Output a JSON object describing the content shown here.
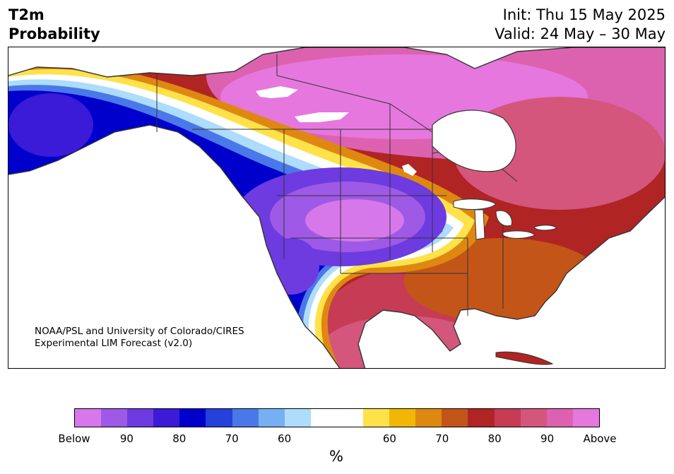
{
  "header": {
    "variable": "T2m",
    "product": "Probability",
    "init": "Init: Thu 15 May 2025",
    "valid": "Valid: 24 May – 30 May"
  },
  "credit": {
    "line1": "NOAA/PSL and University of Colorado/CIRES",
    "line2": "Experimental LIM Forecast (v2.0)"
  },
  "colorbar": {
    "unit": "%",
    "colors": [
      "#d677ea",
      "#9e59e6",
      "#6d3be0",
      "#3b1bd8",
      "#0000cd",
      "#2441dc",
      "#4a78e8",
      "#76b0f2",
      "#addcfc",
      "#ffffff",
      "#ffffff",
      "#ffe24a",
      "#f2b705",
      "#de8812",
      "#c45518",
      "#b12424",
      "#c63c55",
      "#d4567d",
      "#dc62b0",
      "#e677de"
    ],
    "labels": [
      "Below",
      "90",
      "80",
      "70",
      "60",
      "60",
      "70",
      "80",
      "90",
      "Above"
    ]
  },
  "colors": {
    "land": "#ffffff",
    "borders": "#333333",
    "lakes": "#ffffff"
  }
}
